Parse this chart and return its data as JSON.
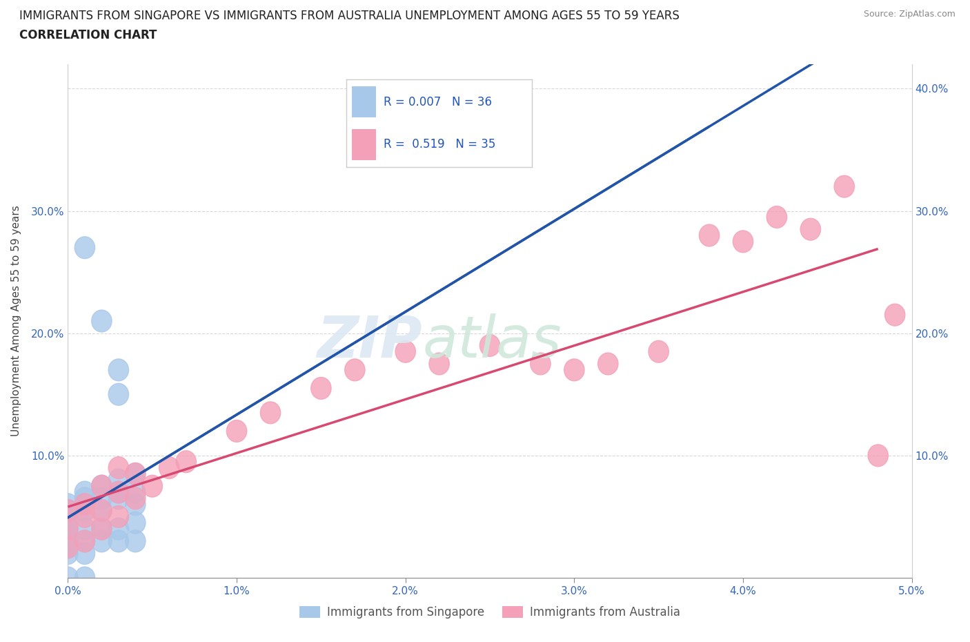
{
  "title_line1": "IMMIGRANTS FROM SINGAPORE VS IMMIGRANTS FROM AUSTRALIA UNEMPLOYMENT AMONG AGES 55 TO 59 YEARS",
  "title_line2": "CORRELATION CHART",
  "source_text": "Source: ZipAtlas.com",
  "ylabel": "Unemployment Among Ages 55 to 59 years",
  "xlim": [
    0.0,
    0.05
  ],
  "ylim": [
    0.0,
    0.42
  ],
  "singapore_color": "#a8c8ea",
  "australia_color": "#f4a0b8",
  "singapore_line_color": "#2255aa",
  "australia_line_color": "#d84870",
  "legend_R_singapore": "0.007",
  "legend_N_singapore": "36",
  "legend_R_australia": "0.519",
  "legend_N_australia": "35",
  "sg_x": [
    0.0,
    0.0,
    0.0,
    0.0,
    0.0,
    0.0,
    0.0,
    0.0,
    0.001,
    0.001,
    0.001,
    0.001,
    0.001,
    0.001,
    0.001,
    0.002,
    0.002,
    0.002,
    0.002,
    0.002,
    0.003,
    0.003,
    0.003,
    0.003,
    0.003,
    0.004,
    0.004,
    0.004,
    0.004,
    0.001,
    0.002,
    0.003,
    0.003,
    0.004,
    0.001,
    0.0
  ],
  "sg_y": [
    0.06,
    0.055,
    0.05,
    0.04,
    0.035,
    0.03,
    0.025,
    0.02,
    0.07,
    0.065,
    0.06,
    0.055,
    0.04,
    0.03,
    0.02,
    0.075,
    0.065,
    0.055,
    0.04,
    0.03,
    0.08,
    0.07,
    0.065,
    0.04,
    0.03,
    0.07,
    0.06,
    0.045,
    0.03,
    0.27,
    0.21,
    0.17,
    0.15,
    0.085,
    0.0,
    0.0
  ],
  "au_x": [
    0.0,
    0.0,
    0.0,
    0.001,
    0.001,
    0.001,
    0.002,
    0.002,
    0.002,
    0.003,
    0.003,
    0.003,
    0.004,
    0.004,
    0.005,
    0.006,
    0.007,
    0.01,
    0.012,
    0.015,
    0.017,
    0.02,
    0.022,
    0.025,
    0.028,
    0.03,
    0.032,
    0.035,
    0.038,
    0.04,
    0.042,
    0.044,
    0.046,
    0.048,
    0.049
  ],
  "au_y": [
    0.055,
    0.04,
    0.025,
    0.06,
    0.05,
    0.03,
    0.075,
    0.055,
    0.04,
    0.09,
    0.07,
    0.05,
    0.085,
    0.065,
    0.075,
    0.09,
    0.095,
    0.12,
    0.135,
    0.155,
    0.17,
    0.185,
    0.175,
    0.19,
    0.175,
    0.17,
    0.175,
    0.185,
    0.28,
    0.275,
    0.295,
    0.285,
    0.32,
    0.1,
    0.215
  ]
}
